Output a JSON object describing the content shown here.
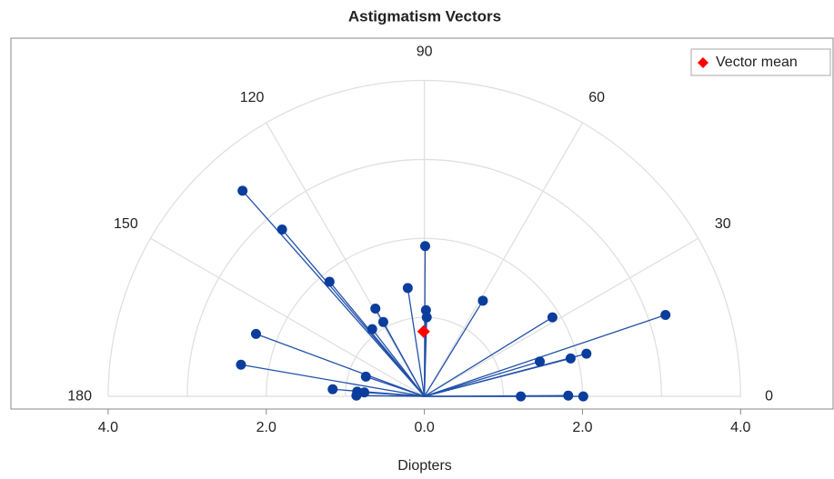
{
  "chart_data": {
    "type": "polar_vectors",
    "title": "Astigmatism Vectors",
    "xlabel": "Diopters",
    "x": [
      -2.3,
      -1.8,
      -1.2,
      -0.62,
      -0.52,
      -0.66,
      -0.21,
      0.01,
      0.02,
      0.03,
      0.74,
      1.62,
      3.05,
      2.05,
      1.85,
      1.46,
      -2.13,
      -2.32,
      -0.74,
      -1.16,
      -0.85,
      -0.76,
      -0.86,
      1.22,
      1.82,
      2.01
    ],
    "values": [
      2.6,
      2.11,
      1.45,
      1.11,
      0.94,
      0.85,
      1.37,
      1.9,
      1.09,
      1.0,
      1.21,
      1.0,
      1.03,
      0.54,
      0.48,
      0.44,
      0.79,
      0.4,
      0.25,
      0.09,
      0.06,
      0.05,
      0.01,
      0.0,
      0.01,
      0.0
    ],
    "color": "#0b3d9c",
    "series": [
      {
        "name": "Vector mean",
        "color": "#ff0000",
        "x": [
          -0.01
        ],
        "values": [
          0.82
        ]
      }
    ],
    "xlim": [
      -5.23,
      5.17
    ],
    "ylim": [
      -0.16,
      4.53
    ],
    "xticks": [
      {
        "value": -4,
        "label": "4.0"
      },
      {
        "value": -2,
        "label": "2.0"
      },
      {
        "value": 0,
        "label": "0.0"
      },
      {
        "value": 2,
        "label": "2.0"
      },
      {
        "value": 4,
        "label": "4.0"
      }
    ],
    "rings": [
      1,
      2,
      3,
      4
    ],
    "angles": [
      0,
      30,
      60,
      90,
      120,
      150,
      180
    ],
    "legend": "top-right"
  }
}
